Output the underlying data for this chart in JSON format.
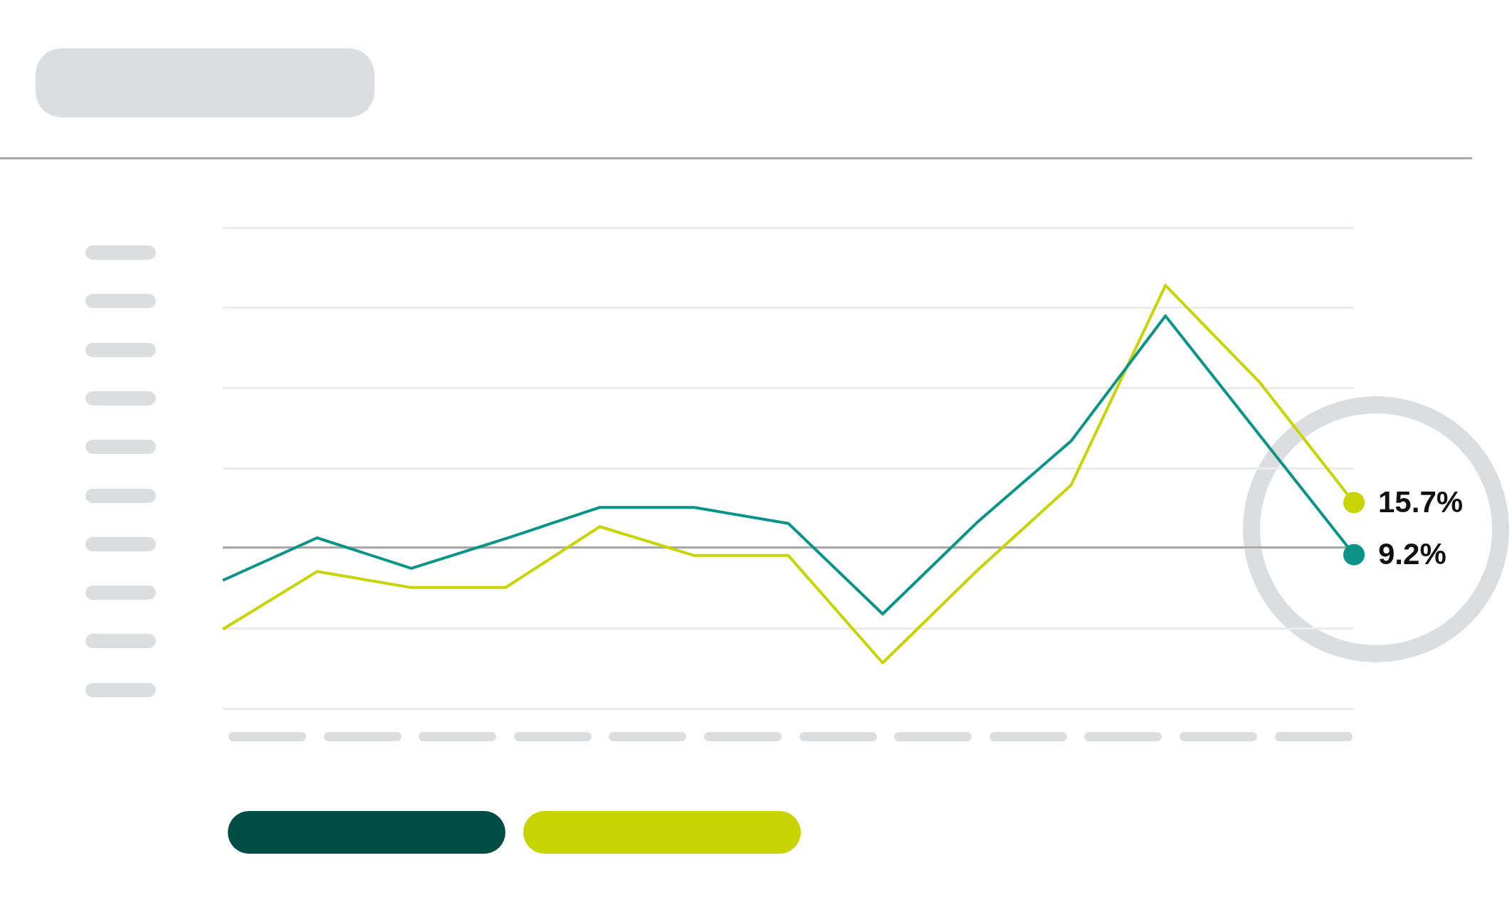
{
  "chart_data": {
    "type": "line",
    "categories": [
      null,
      null,
      null,
      null,
      null,
      null,
      null,
      null,
      null,
      null,
      null,
      null,
      null
    ],
    "series": [
      {
        "color": "#0a9488",
        "values": [
          6.0,
          11.3,
          7.5,
          11.2,
          15.1,
          15.1,
          13.1,
          1.8,
          13.2,
          23.4,
          39.0,
          null,
          9.2
        ],
        "value_labels": [
          null,
          null,
          null,
          null,
          null,
          null,
          null,
          null,
          null,
          null,
          null,
          null,
          "9.2%"
        ]
      },
      {
        "color": "#c8d400",
        "values": [
          -0.1,
          7.1,
          5.1,
          5.1,
          12.7,
          9.1,
          9.1,
          -4.3,
          7.2,
          17.9,
          42.8,
          30.7,
          15.7
        ],
        "value_labels": [
          null,
          null,
          null,
          null,
          null,
          null,
          null,
          null,
          null,
          null,
          null,
          null,
          "15.7%"
        ]
      }
    ],
    "ref_lines": [
      {
        "axis": "y",
        "value": 10.1,
        "color": "#a8a8a8"
      }
    ],
    "grid": "y",
    "tick_labels": false,
    "line_style": "solid"
  }
}
